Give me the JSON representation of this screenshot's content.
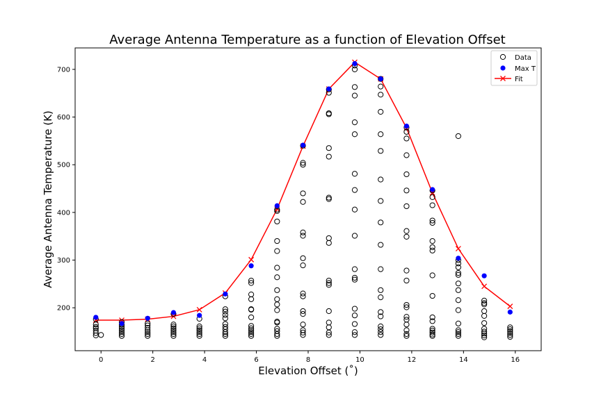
{
  "chart_data": {
    "type": "scatter",
    "title": "Average Antenna Temperature as a function of Elevation Offset",
    "xlabel": "Elevation Offset (˚)",
    "ylabel": "Average Antenna Temperature (K)",
    "xlim": [
      -1,
      17
    ],
    "ylim": [
      110,
      745
    ],
    "xticks": [
      0,
      2,
      4,
      6,
      8,
      10,
      12,
      14,
      16
    ],
    "yticks": [
      200,
      300,
      400,
      500,
      600,
      700
    ],
    "grid": false,
    "legend_position": "top-right",
    "colors": {
      "data": "#000000",
      "max": "#0000ff",
      "fit": "#ff0000"
    },
    "series": [
      {
        "name": "Data",
        "marker": "hollow-circle",
        "points": [
          [
            -0.2,
            142
          ],
          [
            -0.2,
            147
          ],
          [
            -0.2,
            152
          ],
          [
            -0.2,
            157
          ],
          [
            -0.2,
            160
          ],
          [
            -0.2,
            165
          ],
          [
            -0.2,
            176
          ],
          [
            0.0,
            143
          ],
          [
            0.8,
            141
          ],
          [
            0.8,
            145
          ],
          [
            0.8,
            149
          ],
          [
            0.8,
            153
          ],
          [
            0.8,
            157
          ],
          [
            0.8,
            161
          ],
          [
            0.8,
            165
          ],
          [
            0.8,
            170
          ],
          [
            1.8,
            141
          ],
          [
            1.8,
            145
          ],
          [
            1.8,
            149
          ],
          [
            1.8,
            153
          ],
          [
            1.8,
            158
          ],
          [
            1.8,
            163
          ],
          [
            1.8,
            167
          ],
          [
            2.8,
            141
          ],
          [
            2.8,
            145
          ],
          [
            2.8,
            149
          ],
          [
            2.8,
            153
          ],
          [
            2.8,
            157
          ],
          [
            2.8,
            161
          ],
          [
            2.8,
            165
          ],
          [
            2.8,
            187
          ],
          [
            3.8,
            141
          ],
          [
            3.8,
            145
          ],
          [
            3.8,
            149
          ],
          [
            3.8,
            153
          ],
          [
            3.8,
            157
          ],
          [
            3.8,
            161
          ],
          [
            3.8,
            177
          ],
          [
            4.8,
            141
          ],
          [
            4.8,
            145
          ],
          [
            4.8,
            149
          ],
          [
            4.8,
            155
          ],
          [
            4.8,
            160
          ],
          [
            4.8,
            166
          ],
          [
            4.8,
            178
          ],
          [
            4.8,
            185
          ],
          [
            4.8,
            192
          ],
          [
            4.8,
            197
          ],
          [
            4.8,
            224
          ],
          [
            5.8,
            141
          ],
          [
            5.8,
            145
          ],
          [
            5.8,
            149
          ],
          [
            5.8,
            153
          ],
          [
            5.8,
            157
          ],
          [
            5.8,
            162
          ],
          [
            5.8,
            180
          ],
          [
            5.8,
            196
          ],
          [
            5.8,
            197
          ],
          [
            5.8,
            218
          ],
          [
            5.8,
            228
          ],
          [
            5.8,
            252
          ],
          [
            5.8,
            257
          ],
          [
            6.8,
            141
          ],
          [
            6.8,
            145
          ],
          [
            6.8,
            151
          ],
          [
            6.8,
            156
          ],
          [
            6.8,
            169
          ],
          [
            6.8,
            171
          ],
          [
            6.8,
            195
          ],
          [
            6.8,
            207
          ],
          [
            6.8,
            218
          ],
          [
            6.8,
            237
          ],
          [
            6.8,
            264
          ],
          [
            6.8,
            284
          ],
          [
            6.8,
            319
          ],
          [
            6.8,
            340
          ],
          [
            6.8,
            381
          ],
          [
            6.8,
            403
          ],
          [
            6.8,
            406
          ],
          [
            7.8,
            143
          ],
          [
            7.8,
            148
          ],
          [
            7.8,
            153
          ],
          [
            7.8,
            165
          ],
          [
            7.8,
            187
          ],
          [
            7.8,
            193
          ],
          [
            7.8,
            224
          ],
          [
            7.8,
            230
          ],
          [
            7.8,
            289
          ],
          [
            7.8,
            304
          ],
          [
            7.8,
            351
          ],
          [
            7.8,
            358
          ],
          [
            7.8,
            422
          ],
          [
            7.8,
            440
          ],
          [
            7.8,
            500
          ],
          [
            7.8,
            504
          ],
          [
            7.8,
            540
          ],
          [
            8.8,
            143
          ],
          [
            8.8,
            148
          ],
          [
            8.8,
            159
          ],
          [
            8.8,
            169
          ],
          [
            8.8,
            193
          ],
          [
            8.8,
            248
          ],
          [
            8.8,
            252
          ],
          [
            8.8,
            257
          ],
          [
            8.8,
            336
          ],
          [
            8.8,
            346
          ],
          [
            8.8,
            428
          ],
          [
            8.8,
            431
          ],
          [
            8.8,
            517
          ],
          [
            8.8,
            535
          ],
          [
            8.8,
            606
          ],
          [
            8.8,
            608
          ],
          [
            8.8,
            651
          ],
          [
            8.8,
            658
          ],
          [
            9.8,
            143
          ],
          [
            9.8,
            149
          ],
          [
            9.8,
            166
          ],
          [
            9.8,
            184
          ],
          [
            9.8,
            198
          ],
          [
            9.8,
            259
          ],
          [
            9.8,
            263
          ],
          [
            9.8,
            281
          ],
          [
            9.8,
            351
          ],
          [
            9.8,
            406
          ],
          [
            9.8,
            447
          ],
          [
            9.8,
            481
          ],
          [
            9.8,
            564
          ],
          [
            9.8,
            589
          ],
          [
            9.8,
            645
          ],
          [
            9.8,
            663
          ],
          [
            9.8,
            700
          ],
          [
            9.8,
            708
          ],
          [
            10.8,
            143
          ],
          [
            10.8,
            149
          ],
          [
            10.8,
            155
          ],
          [
            10.8,
            161
          ],
          [
            10.8,
            182
          ],
          [
            10.8,
            191
          ],
          [
            10.8,
            222
          ],
          [
            10.8,
            237
          ],
          [
            10.8,
            281
          ],
          [
            10.8,
            332
          ],
          [
            10.8,
            379
          ],
          [
            10.8,
            424
          ],
          [
            10.8,
            469
          ],
          [
            10.8,
            529
          ],
          [
            10.8,
            564
          ],
          [
            10.8,
            611
          ],
          [
            10.8,
            647
          ],
          [
            10.8,
            664
          ],
          [
            10.8,
            680
          ],
          [
            11.8,
            141
          ],
          [
            11.8,
            145
          ],
          [
            11.8,
            153
          ],
          [
            11.8,
            165
          ],
          [
            11.8,
            175
          ],
          [
            11.8,
            181
          ],
          [
            11.8,
            201
          ],
          [
            11.8,
            206
          ],
          [
            11.8,
            257
          ],
          [
            11.8,
            278
          ],
          [
            11.8,
            349
          ],
          [
            11.8,
            361
          ],
          [
            11.8,
            413
          ],
          [
            11.8,
            446
          ],
          [
            11.8,
            480
          ],
          [
            11.8,
            520
          ],
          [
            11.8,
            555
          ],
          [
            11.8,
            569
          ],
          [
            11.8,
            578
          ],
          [
            12.8,
            141
          ],
          [
            12.8,
            144
          ],
          [
            12.8,
            148
          ],
          [
            12.8,
            152
          ],
          [
            12.8,
            156
          ],
          [
            12.8,
            172
          ],
          [
            12.8,
            180
          ],
          [
            12.8,
            225
          ],
          [
            12.8,
            268
          ],
          [
            12.8,
            320
          ],
          [
            12.8,
            327
          ],
          [
            12.8,
            340
          ],
          [
            12.8,
            378
          ],
          [
            12.8,
            383
          ],
          [
            12.8,
            415
          ],
          [
            12.8,
            432
          ],
          [
            12.8,
            446
          ],
          [
            13.8,
            141
          ],
          [
            13.8,
            145
          ],
          [
            13.8,
            149
          ],
          [
            13.8,
            153
          ],
          [
            13.8,
            167
          ],
          [
            13.8,
            195
          ],
          [
            13.8,
            216
          ],
          [
            13.8,
            237
          ],
          [
            13.8,
            251
          ],
          [
            13.8,
            269
          ],
          [
            13.8,
            273
          ],
          [
            13.8,
            285
          ],
          [
            13.8,
            293
          ],
          [
            13.8,
            300
          ],
          [
            13.8,
            560
          ],
          [
            14.8,
            138
          ],
          [
            14.8,
            142
          ],
          [
            14.8,
            146
          ],
          [
            14.8,
            150
          ],
          [
            14.8,
            156
          ],
          [
            14.8,
            168
          ],
          [
            14.8,
            183
          ],
          [
            14.8,
            193
          ],
          [
            14.8,
            207
          ],
          [
            14.8,
            210
          ],
          [
            14.8,
            215
          ],
          [
            15.8,
            139
          ],
          [
            15.8,
            143
          ],
          [
            15.8,
            147
          ],
          [
            15.8,
            151
          ],
          [
            15.8,
            155
          ],
          [
            15.8,
            159
          ]
        ]
      },
      {
        "name": "Max T",
        "marker": "filled-circle",
        "x": [
          -0.2,
          0.8,
          1.8,
          2.8,
          3.8,
          4.8,
          5.8,
          6.8,
          7.8,
          8.8,
          9.8,
          10.8,
          11.8,
          12.8,
          13.8,
          14.8,
          15.8
        ],
        "y": [
          180,
          167,
          178,
          190,
          184,
          229,
          288,
          414,
          541,
          659,
          712,
          680,
          581,
          448,
          304,
          267,
          191
        ]
      },
      {
        "name": "Fit",
        "marker": "x-line",
        "x": [
          -0.2,
          0.8,
          1.8,
          2.8,
          3.8,
          4.8,
          5.8,
          6.8,
          7.8,
          8.8,
          9.8,
          10.8,
          11.8,
          12.8,
          13.8,
          14.8,
          15.8
        ],
        "y": [
          174,
          174,
          176,
          182,
          196,
          231,
          301,
          407,
          539,
          659,
          715,
          680,
          577,
          441,
          324,
          245,
          203
        ]
      }
    ]
  }
}
